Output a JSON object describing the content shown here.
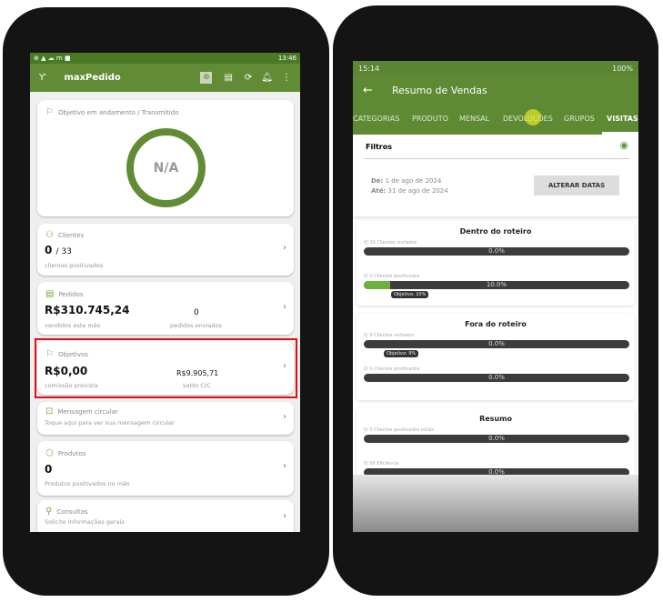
{
  "left_phone": {
    "status": {
      "icons": "⊕ ▲ ☁ m ■",
      "time": "13:46"
    },
    "appbar": {
      "title": "maxPedido",
      "icons": [
        "filter-icon",
        "target-icon",
        "message-icon",
        "sync-icon",
        "bell-icon",
        "more-icon"
      ]
    },
    "objective_card": {
      "title": "Objetivo em andamento / Transmitido",
      "value": "N/A"
    },
    "clientes": {
      "title": "Clientes",
      "value": "0",
      "total": "/ 33",
      "caption": "clientes positivados"
    },
    "pedidos": {
      "title": "Pedidos",
      "value": "R$310.745,24",
      "caption": "vendidos este mês",
      "count": "0",
      "count_caption": "pedidos enviados"
    },
    "objetivos": {
      "title": "Objetivos",
      "value": "R$0,00",
      "caption": "comissão prevista",
      "balance": "R$9.905,71",
      "balance_caption": "saldo C/C"
    },
    "mensagem": {
      "title": "Mensagem circular",
      "caption": "Toque aqui para ver sua mensagem circular"
    },
    "produtos": {
      "title": "Produtos",
      "value": "0",
      "caption": "Produtos positivados no mês"
    },
    "consultas": {
      "title": "Consultas",
      "caption": "Solicite informações gerais"
    },
    "highlight_color": "#e01010",
    "accent": "#618b35"
  },
  "right_phone": {
    "status": {
      "time": "15:14",
      "right": "100%"
    },
    "title": "Resumo de Vendas",
    "tabs": [
      "CATEGORIAS",
      "PRODUTO",
      "MENSAL",
      "DEVOLUÇÕES",
      "GRUPOS",
      "VISITAS"
    ],
    "active_tab": "VISITAS",
    "filters": {
      "title": "Filtros",
      "from_label": "De:",
      "from": "1 de ago de 2024",
      "to_label": "Até:",
      "to": "31 de ago de 2024",
      "button": "ALTERAR DATAS"
    },
    "sections": [
      {
        "title": "Dentro do roteiro",
        "bars": [
          {
            "label": "0/ 10 Clientes visitados",
            "percent": 0,
            "text": "0.0%"
          },
          {
            "label": "0/ 0 Clientes positivados",
            "percent": 10,
            "text": "10.0%",
            "goal": "Objetivo: 10%"
          }
        ]
      },
      {
        "title": "Fora do roteiro",
        "bars": [
          {
            "label": "0/ 9 Clientes visitados",
            "percent": 0,
            "text": "0.0%",
            "goal": "Objetivo: 9%"
          },
          {
            "label": "0/ 0 Clientes positivados",
            "percent": 0,
            "text": "0.0%"
          }
        ]
      },
      {
        "title": "Resumo",
        "bars": [
          {
            "label": "0/ 0 Clientes positivados totais",
            "percent": 0,
            "text": "0.0%"
          },
          {
            "label": "0/ 66 Eficiência",
            "percent": 0,
            "text": "0.0%"
          }
        ]
      }
    ]
  }
}
